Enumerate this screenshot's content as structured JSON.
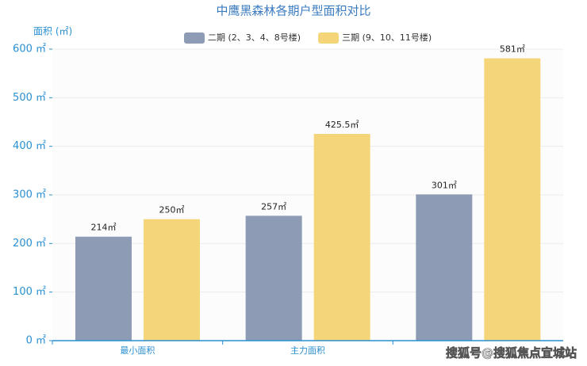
{
  "chart_data": {
    "type": "bar",
    "title": "中鹰黑森林各期户型面积对比",
    "y_label": "面积 (㎡)",
    "categories": [
      "最小面积",
      "主力面积",
      null
    ],
    "series": [
      {
        "name": "二期 (2、3、4、8号楼)",
        "color": "#8e9bb5",
        "values": [
          214,
          257,
          301
        ],
        "value_labels": [
          "214㎡",
          "257㎡",
          "301㎡"
        ]
      },
      {
        "name": "三期 (9、10、11号楼)",
        "color": "#f5d57a",
        "values": [
          250,
          425.5,
          581
        ],
        "value_labels": [
          "250㎡",
          "425.5㎡",
          "581㎡"
        ]
      }
    ],
    "ylim": [
      0,
      600
    ],
    "yticks": [
      {
        "value": 0,
        "label": "0 ㎡"
      },
      {
        "value": 100,
        "label": "100 ㎡"
      },
      {
        "value": 200,
        "label": "200 ㎡"
      },
      {
        "value": 300,
        "label": "300 ㎡"
      },
      {
        "value": 400,
        "label": "400 ㎡"
      },
      {
        "value": 500,
        "label": "500 ㎡"
      },
      {
        "value": 600,
        "label": "600 ㎡"
      }
    ],
    "grid": true,
    "legend": "top",
    "watermark": "搜狐号@搜狐焦点宜城站"
  }
}
